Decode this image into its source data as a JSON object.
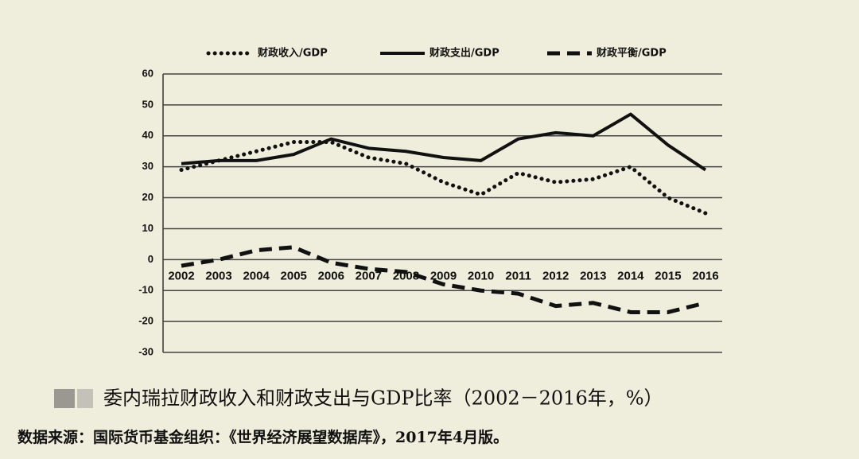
{
  "chart_data": {
    "type": "line",
    "title": "委内瑞拉财政收入和财政支出与GDP比率（2002－2016年，%）",
    "source": "数据来源：国际货币基金组织：《世界经济展望数据库》，2017年4月版。",
    "categories": [
      "2002",
      "2003",
      "2004",
      "2005",
      "2006",
      "2007",
      "2008",
      "2009",
      "2010",
      "2011",
      "2012",
      "2013",
      "2014",
      "2015",
      "2016"
    ],
    "series": [
      {
        "name": "财政收入/GDP",
        "color": "#111111",
        "style": "dotted",
        "values": [
          29,
          32,
          35,
          38,
          38,
          33,
          31,
          25,
          21,
          28,
          25,
          26,
          30,
          20,
          15
        ]
      },
      {
        "name": "财政支出/GDP",
        "color": "#111111",
        "style": "solid",
        "values": [
          31,
          32,
          32,
          34,
          39,
          36,
          35,
          33,
          32,
          39,
          41,
          40,
          47,
          37,
          29
        ]
      },
      {
        "name": "财政平衡/GDP",
        "color": "#111111",
        "style": "dashed",
        "values": [
          -2,
          0,
          3,
          4,
          -1,
          -3,
          -4,
          -8,
          -10,
          -11,
          -15,
          -14,
          -17,
          -17,
          -14
        ]
      }
    ],
    "ylim": [
      -30,
      60
    ],
    "yticks": [
      -30,
      -20,
      -10,
      0,
      10,
      20,
      30,
      40,
      50,
      60
    ],
    "grid": true,
    "legend": "top"
  }
}
